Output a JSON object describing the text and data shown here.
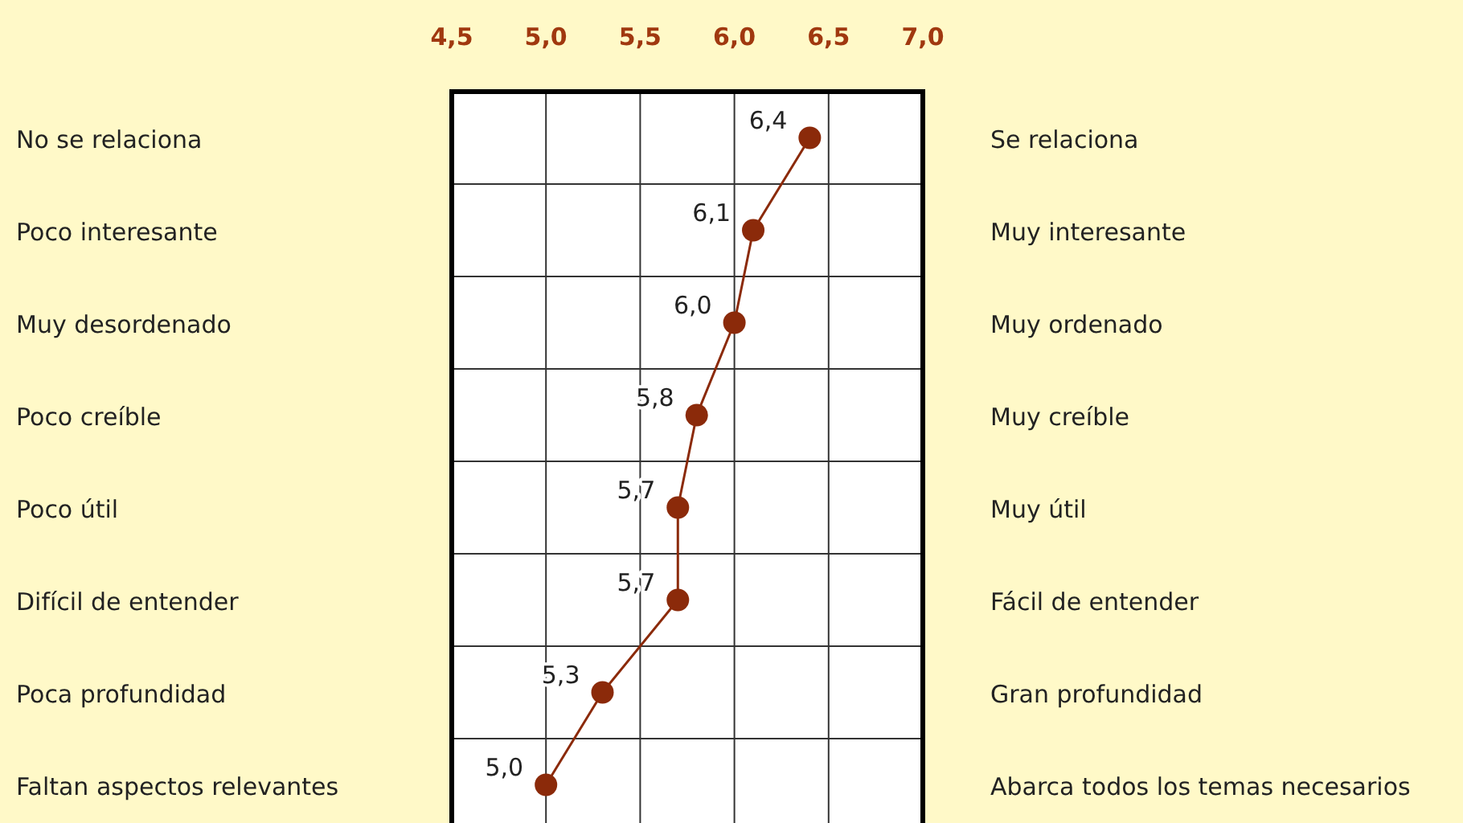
{
  "chart_data": {
    "type": "line",
    "orientation": "horizontal",
    "categories": [
      "No se relaciona",
      "Poco interesante",
      "Muy desordenado",
      "Poco creíble",
      "Poco útil",
      "Difícil de entender",
      "Poca profundidad",
      "Faltan aspectos relevantes"
    ],
    "y2_categories": [
      "Se relaciona",
      "Muy interesante",
      "Muy ordenado",
      "Muy creíble",
      "Muy útil",
      "Fácil de entender",
      "Gran profundidad",
      "Abarca todos los temas necesarios"
    ],
    "series": [
      {
        "color": "#8b2a0a",
        "values": [
          6.4,
          6.1,
          6.0,
          5.8,
          5.7,
          5.7,
          5.3,
          5.0
        ],
        "value_labels": [
          "6,4",
          "6,1",
          "6,0",
          "5,8",
          "5,7",
          "5,7",
          "5,3",
          "5,0"
        ]
      }
    ],
    "xlim": [
      4.5,
      7.0
    ],
    "xticks": [
      {
        "value": 4.5,
        "label": "4,5"
      },
      {
        "value": 5.0,
        "label": "5,0"
      },
      {
        "value": 5.5,
        "label": "5,5"
      },
      {
        "value": 6.0,
        "label": "6,0"
      },
      {
        "value": 6.5,
        "label": "6,5"
      },
      {
        "value": 7.0,
        "label": "7,0"
      }
    ],
    "grid": true,
    "marker": "circle",
    "line_style": "solid"
  }
}
